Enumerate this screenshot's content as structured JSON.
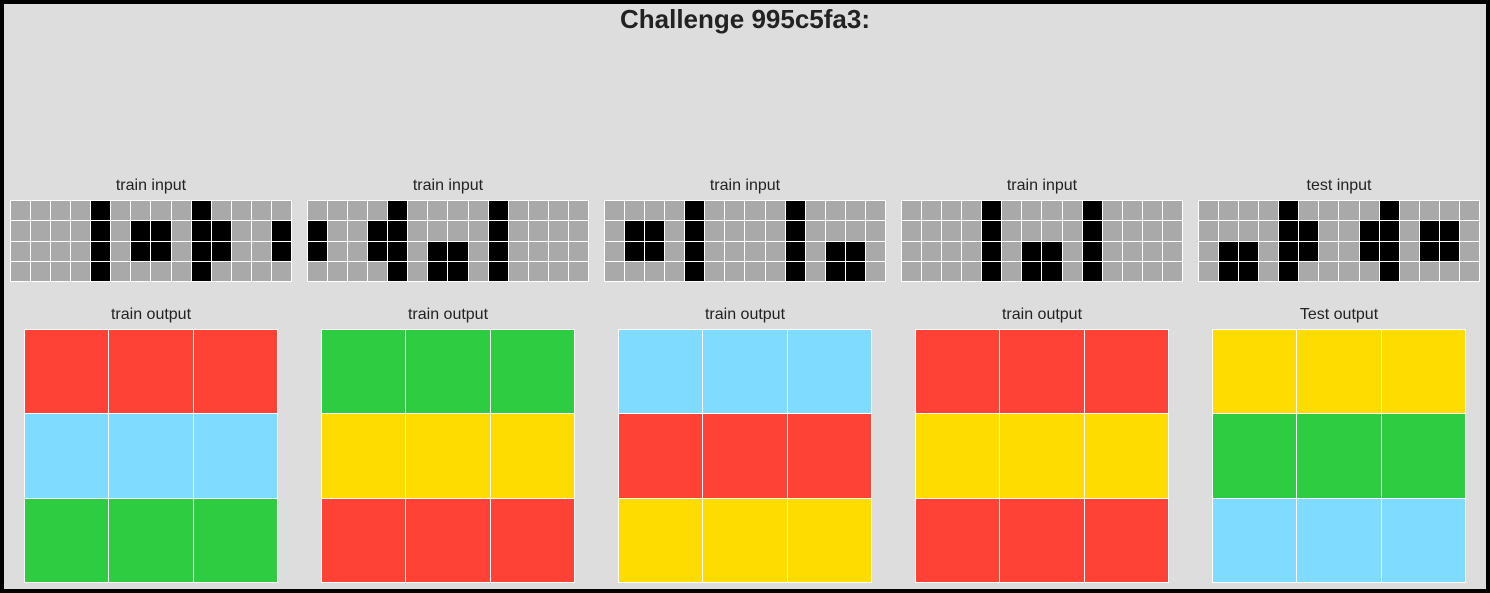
{
  "title": "Challenge 995c5fa3:",
  "palette": {
    "0": "#000000",
    "5": "#a9a9a9",
    "2": "#ff4136",
    "3": "#2ecc40",
    "4": "#ffdc00",
    "8": "#7fdbff"
  },
  "pairs": [
    {
      "input_label": "train input",
      "output_label": "train output",
      "input": [
        [
          5,
          5,
          5,
          5,
          0,
          5,
          5,
          5,
          5,
          0,
          5,
          5,
          5,
          5
        ],
        [
          5,
          5,
          5,
          5,
          0,
          5,
          0,
          0,
          5,
          0,
          0,
          5,
          5,
          0
        ],
        [
          5,
          5,
          5,
          5,
          0,
          5,
          0,
          0,
          5,
          0,
          0,
          5,
          5,
          0
        ],
        [
          5,
          5,
          5,
          5,
          0,
          5,
          5,
          5,
          5,
          0,
          5,
          5,
          5,
          5
        ]
      ],
      "output": [
        [
          2,
          2,
          2
        ],
        [
          8,
          8,
          8
        ],
        [
          3,
          3,
          3
        ]
      ]
    },
    {
      "input_label": "train input",
      "output_label": "train output",
      "input": [
        [
          5,
          5,
          5,
          5,
          0,
          5,
          5,
          5,
          5,
          0,
          5,
          5,
          5,
          5
        ],
        [
          0,
          5,
          5,
          0,
          0,
          5,
          5,
          5,
          5,
          0,
          5,
          5,
          5,
          5
        ],
        [
          0,
          5,
          5,
          0,
          0,
          5,
          0,
          0,
          5,
          0,
          5,
          5,
          5,
          5
        ],
        [
          5,
          5,
          5,
          5,
          0,
          5,
          0,
          0,
          5,
          0,
          5,
          5,
          5,
          5
        ]
      ],
      "output": [
        [
          3,
          3,
          3
        ],
        [
          4,
          4,
          4
        ],
        [
          2,
          2,
          2
        ]
      ]
    },
    {
      "input_label": "train input",
      "output_label": "train output",
      "input": [
        [
          5,
          5,
          5,
          5,
          0,
          5,
          5,
          5,
          5,
          0,
          5,
          5,
          5,
          5
        ],
        [
          5,
          0,
          0,
          5,
          0,
          5,
          5,
          5,
          5,
          0,
          5,
          5,
          5,
          5
        ],
        [
          5,
          0,
          0,
          5,
          0,
          5,
          5,
          5,
          5,
          0,
          5,
          0,
          0,
          5
        ],
        [
          5,
          5,
          5,
          5,
          0,
          5,
          5,
          5,
          5,
          0,
          5,
          0,
          0,
          5
        ]
      ],
      "output": [
        [
          8,
          8,
          8
        ],
        [
          2,
          2,
          2
        ],
        [
          4,
          4,
          4
        ]
      ]
    },
    {
      "input_label": "train input",
      "output_label": "train output",
      "input": [
        [
          5,
          5,
          5,
          5,
          0,
          5,
          5,
          5,
          5,
          0,
          5,
          5,
          5,
          5
        ],
        [
          5,
          5,
          5,
          5,
          0,
          5,
          5,
          5,
          5,
          0,
          5,
          5,
          5,
          5
        ],
        [
          5,
          5,
          5,
          5,
          0,
          5,
          0,
          0,
          5,
          0,
          5,
          5,
          5,
          5
        ],
        [
          5,
          5,
          5,
          5,
          0,
          5,
          0,
          0,
          5,
          0,
          5,
          5,
          5,
          5
        ]
      ],
      "output": [
        [
          2,
          2,
          2
        ],
        [
          4,
          4,
          4
        ],
        [
          2,
          2,
          2
        ]
      ]
    },
    {
      "input_label": "test input",
      "output_label": "Test output",
      "input": [
        [
          5,
          5,
          5,
          5,
          0,
          5,
          5,
          5,
          5,
          0,
          5,
          5,
          5,
          5
        ],
        [
          5,
          5,
          5,
          5,
          0,
          0,
          5,
          5,
          0,
          0,
          5,
          0,
          0,
          5
        ],
        [
          5,
          0,
          0,
          5,
          0,
          0,
          5,
          5,
          0,
          0,
          5,
          0,
          0,
          5
        ],
        [
          5,
          0,
          0,
          5,
          0,
          5,
          5,
          5,
          5,
          0,
          5,
          5,
          5,
          5
        ]
      ],
      "output": [
        [
          4,
          4,
          4
        ],
        [
          3,
          3,
          3
        ],
        [
          8,
          8,
          8
        ]
      ]
    }
  ]
}
